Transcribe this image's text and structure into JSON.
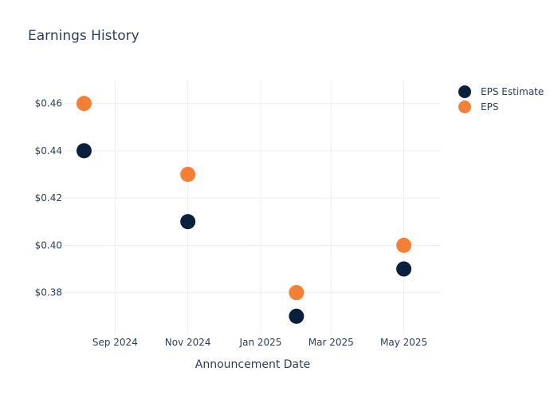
{
  "chart_data": {
    "type": "scatter",
    "title": "Earnings History",
    "xlabel": "Announcement Date",
    "ylabel": "",
    "x_range": [
      "2024-07-20",
      "2025-06-01"
    ],
    "ylim": [
      0.362,
      0.47
    ],
    "x_ticks": [
      {
        "date": "2024-09-01",
        "label": "Sep 2024"
      },
      {
        "date": "2024-11-01",
        "label": "Nov 2024"
      },
      {
        "date": "2025-01-01",
        "label": "Jan 2025"
      },
      {
        "date": "2025-03-01",
        "label": "Mar 2025"
      },
      {
        "date": "2025-05-01",
        "label": "May 2025"
      }
    ],
    "y_ticks": [
      {
        "value": 0.38,
        "label": "$0.38"
      },
      {
        "value": 0.4,
        "label": "$0.40"
      },
      {
        "value": 0.42,
        "label": "$0.42"
      },
      {
        "value": 0.44,
        "label": "$0.44"
      },
      {
        "value": 0.46,
        "label": "$0.46"
      }
    ],
    "x": [
      "2024-08-06",
      "2024-11-01",
      "2025-01-31",
      "2025-05-01"
    ],
    "series": [
      {
        "name": "EPS Estimate",
        "color": "#0b1f3f",
        "values": [
          0.44,
          0.41,
          0.37,
          0.39
        ]
      },
      {
        "name": "EPS",
        "color": "#f58035",
        "values": [
          0.46,
          0.43,
          0.38,
          0.4
        ]
      }
    ],
    "grid": true,
    "legend": "top-right"
  },
  "colors": {
    "text": "#2a3f5f",
    "grid": "#eeeeee",
    "background": "#ffffff"
  }
}
